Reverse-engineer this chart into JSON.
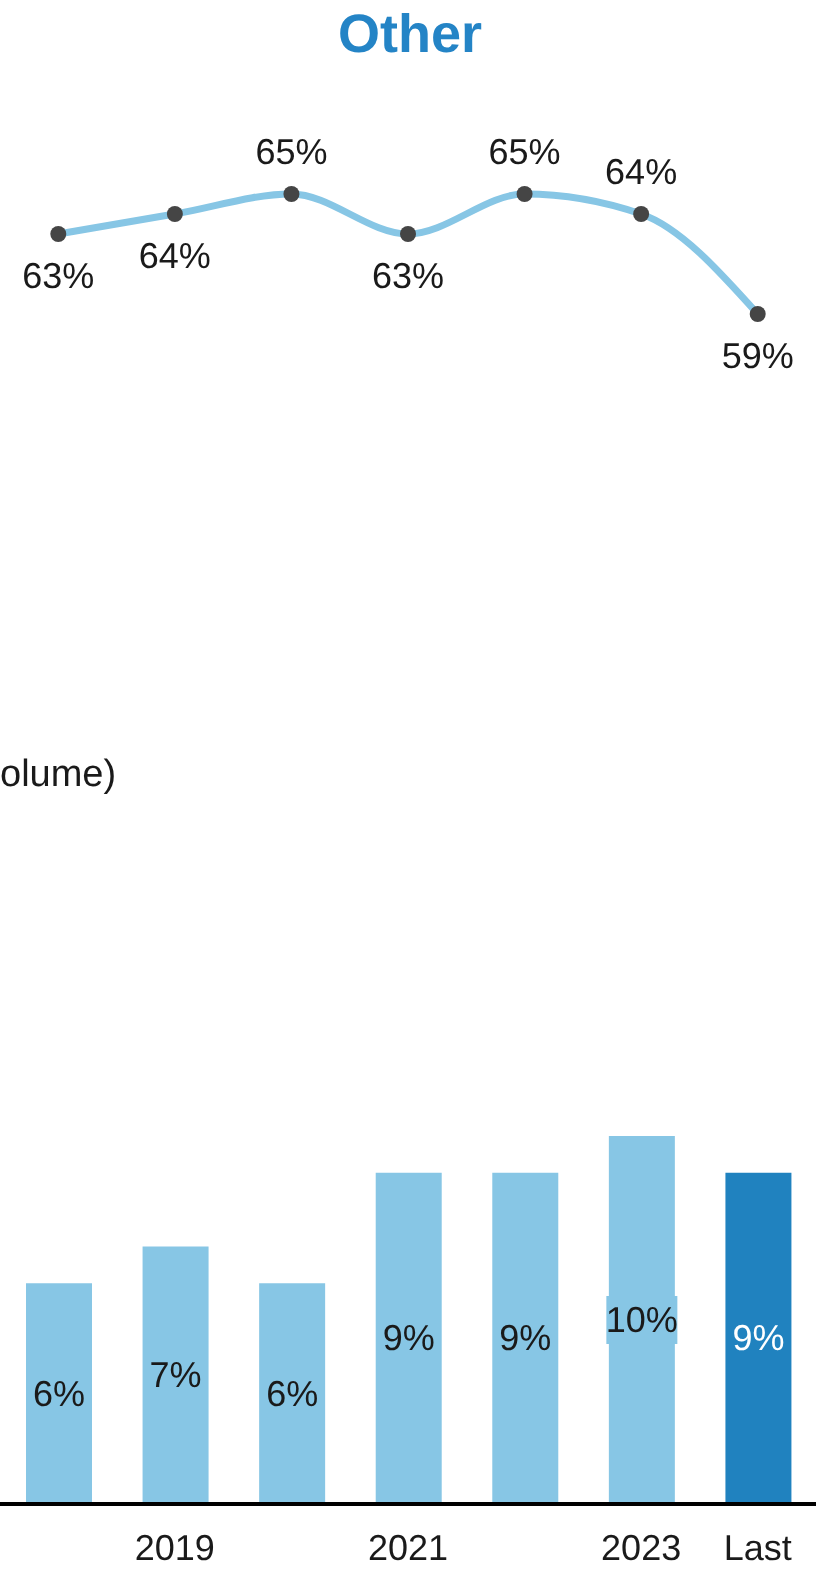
{
  "chart_data": [
    {
      "type": "line",
      "title": "Other",
      "categories": [
        null,
        null,
        null,
        null,
        null,
        null,
        null
      ],
      "values": [
        63,
        64,
        65,
        63,
        65,
        64,
        59
      ],
      "value_labels": [
        "63%",
        "64%",
        "65%",
        "63%",
        "65%",
        "64%",
        "59%"
      ],
      "color": "#87c6e5",
      "marker": "circle"
    },
    {
      "type": "bar",
      "title": "olume)",
      "categories": [
        null,
        "2019",
        null,
        "2021",
        null,
        "2023",
        "Last"
      ],
      "values": [
        6,
        7,
        6,
        9,
        9,
        10,
        9
      ],
      "value_labels": [
        "6%",
        "7%",
        "6%",
        "9%",
        "9%",
        "10%",
        "9%"
      ],
      "colors": [
        "#87c6e5",
        "#87c6e5",
        "#87c6e5",
        "#87c6e5",
        "#87c6e5",
        "#87c6e5",
        "#2082bf"
      ]
    }
  ]
}
